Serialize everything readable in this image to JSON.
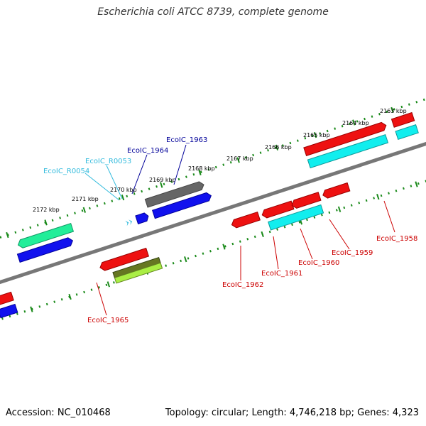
{
  "title": "Escherichia coli ATCC 8739, complete genome",
  "footer": {
    "accession": "Accession: NC_010468",
    "summary": "Topology: circular; Length: 4,746,218 bp; Genes: 4,323"
  },
  "colors": {
    "backbone": "#777777",
    "ruler_tick": "#1a8a1a",
    "gene_red": "#ee1111",
    "gene_blue": "#1111ee",
    "gene_cyan": "#11eeee",
    "gene_gray": "#666666",
    "gene_green": "#22ee99",
    "gene_olive": "#667722",
    "gene_lime": "#aaee44",
    "label_red": "#cc0000",
    "label_navy": "#000099",
    "label_lightblue": "#33bbdd"
  },
  "ruler_labels": [
    "2163 kbp",
    "2164 kbp",
    "2165 kbp",
    "2166 kbp",
    "2167 kbp",
    "2168 kbp",
    "2169 kbp",
    "2170 kbp",
    "2171 kbp",
    "2172 kbp"
  ],
  "gene_labels": {
    "ecoic_1958": "EcoIC_1958",
    "ecoic_1959": "EcoIC_1959",
    "ecoic_1960": "EcoIC_1960",
    "ecoic_1961": "EcoIC_1961",
    "ecoic_1962": "EcoIC_1962",
    "ecoic_1963": "EcoIC_1963",
    "ecoic_1964": "EcoIC_1964",
    "ecoic_1965": "EcoIC_1965",
    "ecoic_r0053": "EcoIC_R0053",
    "ecoic_r0054": "EcoIC_R0054"
  }
}
